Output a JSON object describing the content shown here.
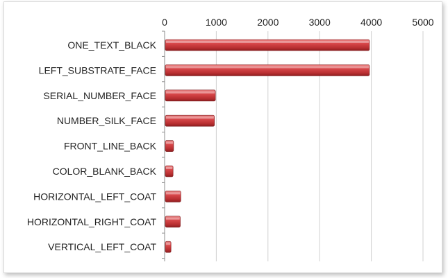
{
  "chart_data": {
    "type": "bar",
    "orientation": "horizontal",
    "categories": [
      "ONE_TEXT_BLACK",
      "LEFT_SUBSTRATE_FACE",
      "SERIAL_NUMBER_FACE",
      "NUMBER_SILK_FACE",
      "FRONT_LINE_BACK",
      "COLOR_BLANK_BACK",
      "HORIZONTAL_LEFT_COAT",
      "HORIZONTAL_RIGHT_COAT",
      "VERTICAL_LEFT_COAT"
    ],
    "values": [
      3950,
      3950,
      970,
      950,
      160,
      150,
      300,
      290,
      110
    ],
    "xlim": [
      0,
      5000
    ],
    "ticks": [
      "0",
      "1000",
      "2000",
      "3000",
      "4000",
      "5000"
    ],
    "tick_values": [
      0,
      1000,
      2000,
      3000,
      4000,
      5000
    ],
    "axis_position": "top",
    "grid": true,
    "legend": "none",
    "bar_color": "#c0393b"
  }
}
